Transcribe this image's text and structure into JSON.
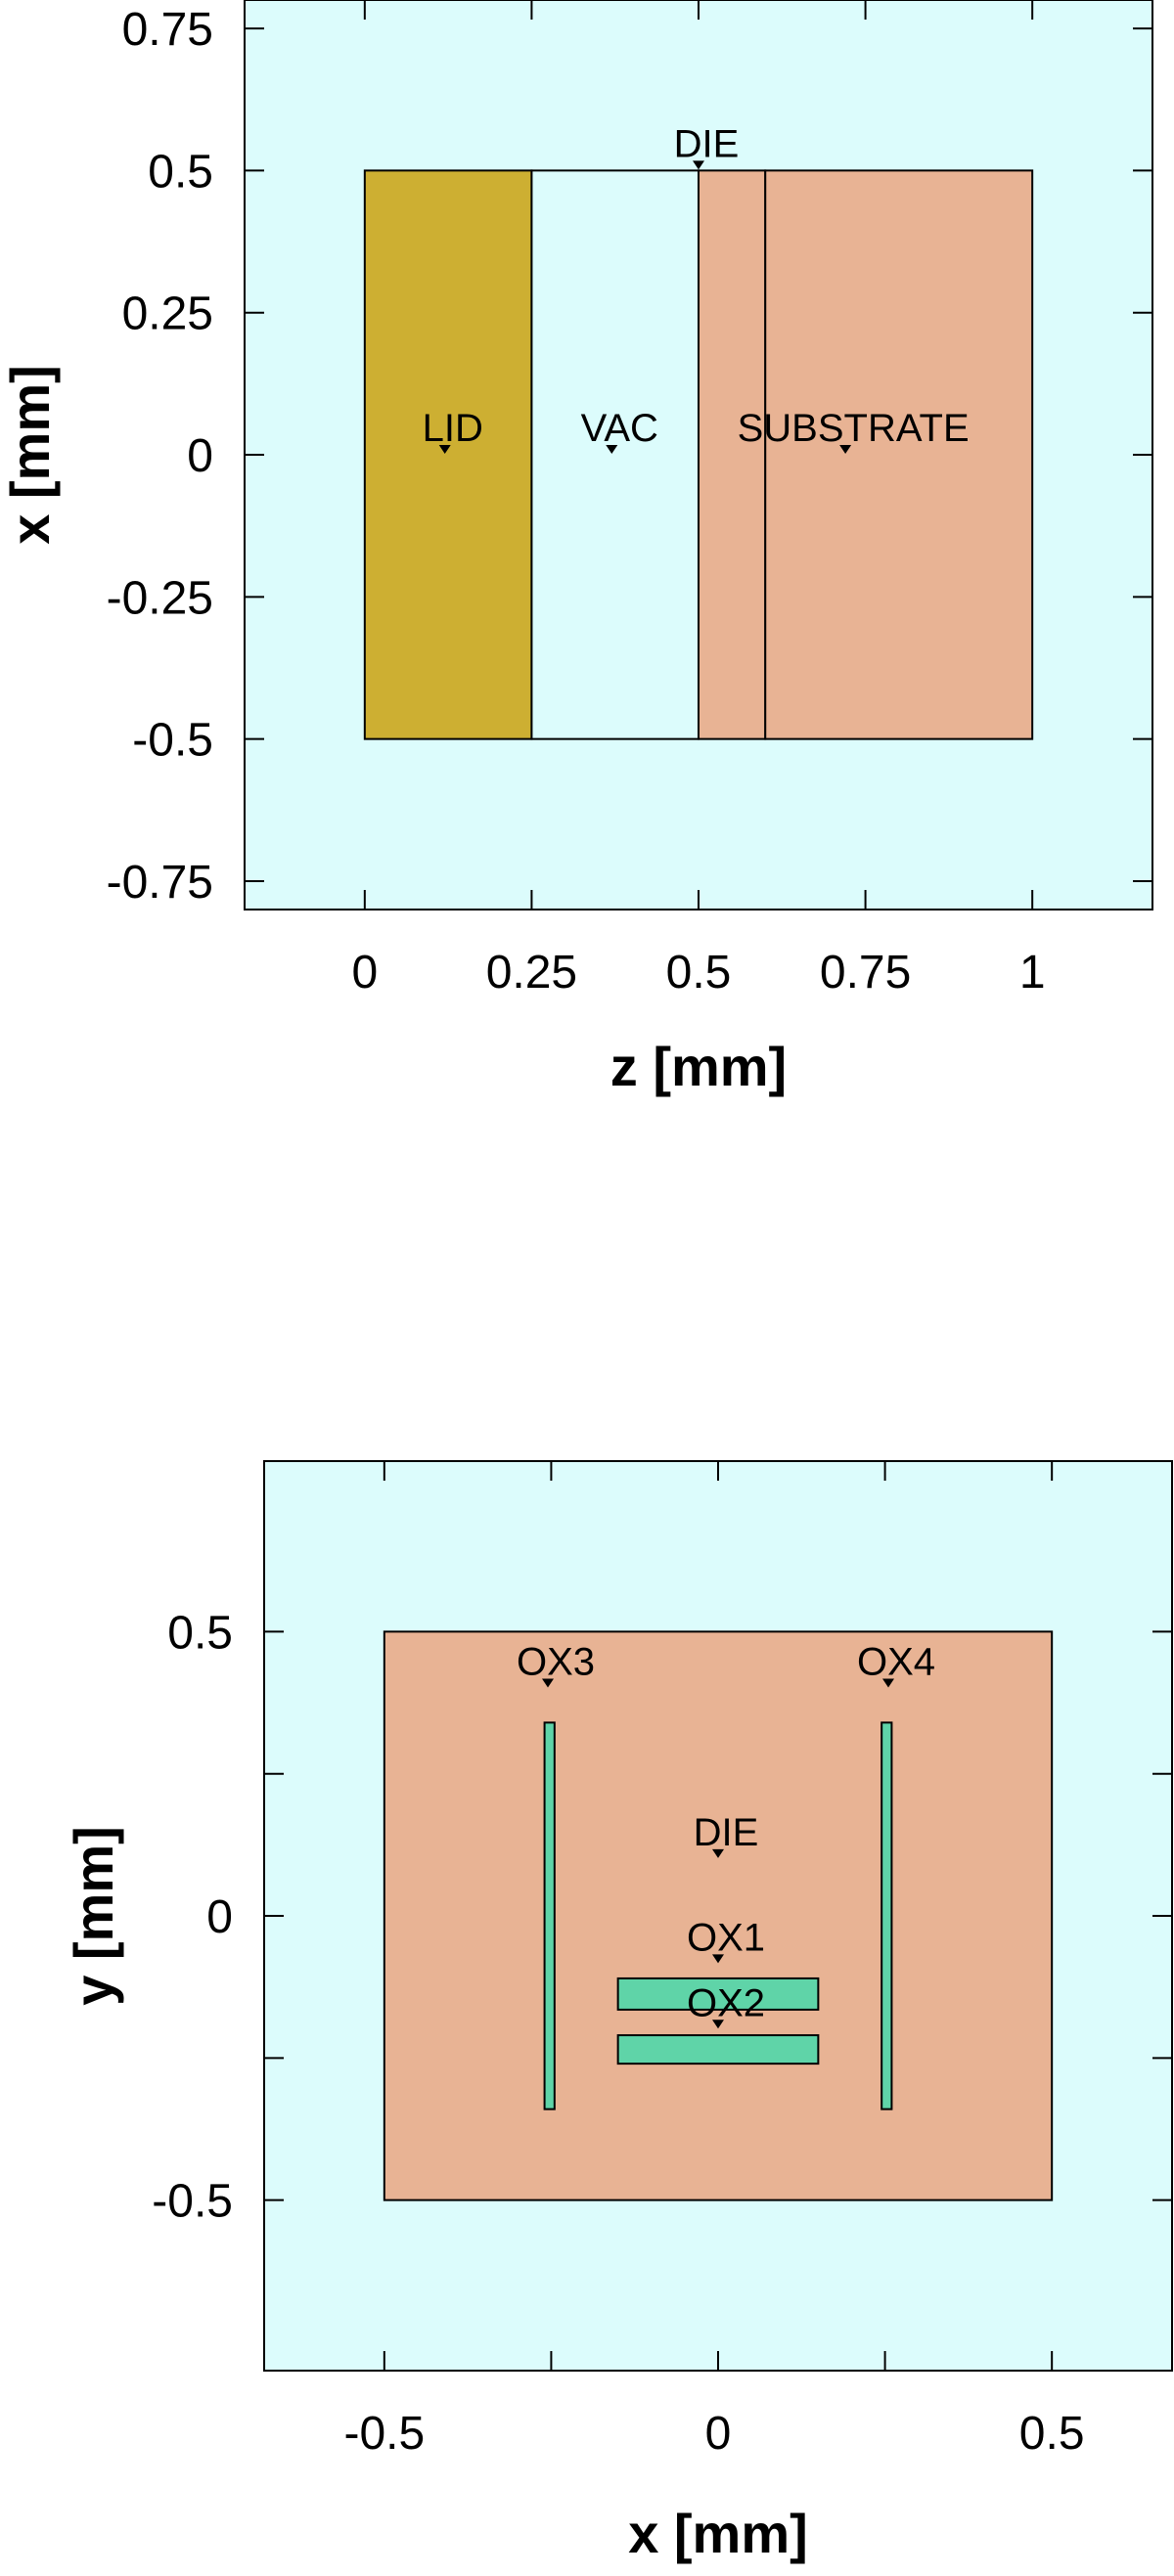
{
  "chart_data": [
    {
      "type": "diagram",
      "xlabel": "z [mm]",
      "ylabel": "x [mm]",
      "xlim": [
        -0.18,
        1.18
      ],
      "ylim": [
        -0.8,
        0.8
      ],
      "x_ticks": [
        {
          "value": 0,
          "label": "0"
        },
        {
          "value": 0.25,
          "label": "0.25"
        },
        {
          "value": 0.5,
          "label": "0.5"
        },
        {
          "value": 0.75,
          "label": "0.75"
        },
        {
          "value": 1,
          "label": "1"
        }
      ],
      "y_ticks": [
        {
          "value": 0.75,
          "label": "0.75"
        },
        {
          "value": 0.5,
          "label": "0.5"
        },
        {
          "value": 0.25,
          "label": "0.25"
        },
        {
          "value": 0,
          "label": "0"
        },
        {
          "value": -0.25,
          "label": "-0.25"
        },
        {
          "value": -0.5,
          "label": "-0.5"
        },
        {
          "value": -0.75,
          "label": "-0.75"
        }
      ],
      "background_color": "#dcfcfc",
      "regions": [
        {
          "name": "lid",
          "x0": 0,
          "x1": 0.25,
          "y0": -0.5,
          "y1": 0.5,
          "color": "#cdaf32"
        },
        {
          "name": "vac",
          "x0": 0.25,
          "x1": 0.5,
          "y0": -0.5,
          "y1": 0.5,
          "color": "#dcfcfc"
        },
        {
          "name": "die",
          "x0": 0.5,
          "x1": 0.6,
          "y0": -0.5,
          "y1": 0.5,
          "color": "#e8b394"
        },
        {
          "name": "substrate",
          "x0": 0.6,
          "x1": 1.0,
          "y0": -0.5,
          "y1": 0.5,
          "color": "#e8b394"
        }
      ],
      "labels": [
        {
          "text": "LID",
          "x": 0.12,
          "y": 0.0
        },
        {
          "text": "VAC",
          "x": 0.37,
          "y": 0.0
        },
        {
          "text": "SUBSTRATE",
          "x": 0.72,
          "y": 0.0
        },
        {
          "text": "DIE",
          "x": 0.5,
          "y": 0.5
        }
      ]
    },
    {
      "type": "diagram",
      "xlabel": "x [mm]",
      "ylabel": "y [mm]",
      "xlim": [
        -0.68,
        0.68
      ],
      "ylim": [
        -0.8,
        0.8
      ],
      "x_ticks": [
        {
          "value": -0.5,
          "label": "-0.5"
        },
        {
          "value": 0,
          "label": "0"
        },
        {
          "value": 0.5,
          "label": "0.5"
        }
      ],
      "y_ticks": [
        {
          "value": 0.5,
          "label": "0.5"
        },
        {
          "value": 0,
          "label": "0"
        },
        {
          "value": -0.5,
          "label": "-0.5"
        }
      ],
      "minor_x_ticks": [
        -0.25,
        0.25
      ],
      "minor_y_ticks": [
        0.25,
        -0.25
      ],
      "background_color": "#dcfcfc",
      "regions": [
        {
          "name": "die",
          "x0": -0.5,
          "x1": 0.5,
          "y0": -0.5,
          "y1": 0.5,
          "color": "#e8b394"
        },
        {
          "name": "ox3",
          "x0": -0.26,
          "x1": -0.245,
          "y0": -0.34,
          "y1": 0.34,
          "color": "#5fd4a8"
        },
        {
          "name": "ox4",
          "x0": 0.245,
          "x1": 0.26,
          "y0": -0.34,
          "y1": 0.34,
          "color": "#5fd4a8"
        },
        {
          "name": "ox1",
          "x0": -0.15,
          "x1": 0.15,
          "y0": -0.165,
          "y1": -0.11,
          "color": "#5fd4a8"
        },
        {
          "name": "ox2",
          "x0": -0.15,
          "x1": 0.15,
          "y0": -0.26,
          "y1": -0.21,
          "color": "#5fd4a8"
        }
      ],
      "labels": [
        {
          "text": "OX3",
          "x": -0.255,
          "y": 0.4
        },
        {
          "text": "OX4",
          "x": 0.255,
          "y": 0.4
        },
        {
          "text": "DIE",
          "x": 0.0,
          "y": 0.1
        },
        {
          "text": "OX1",
          "x": 0.0,
          "y": -0.085
        },
        {
          "text": "OX2",
          "x": 0.0,
          "y": -0.2
        }
      ]
    }
  ]
}
